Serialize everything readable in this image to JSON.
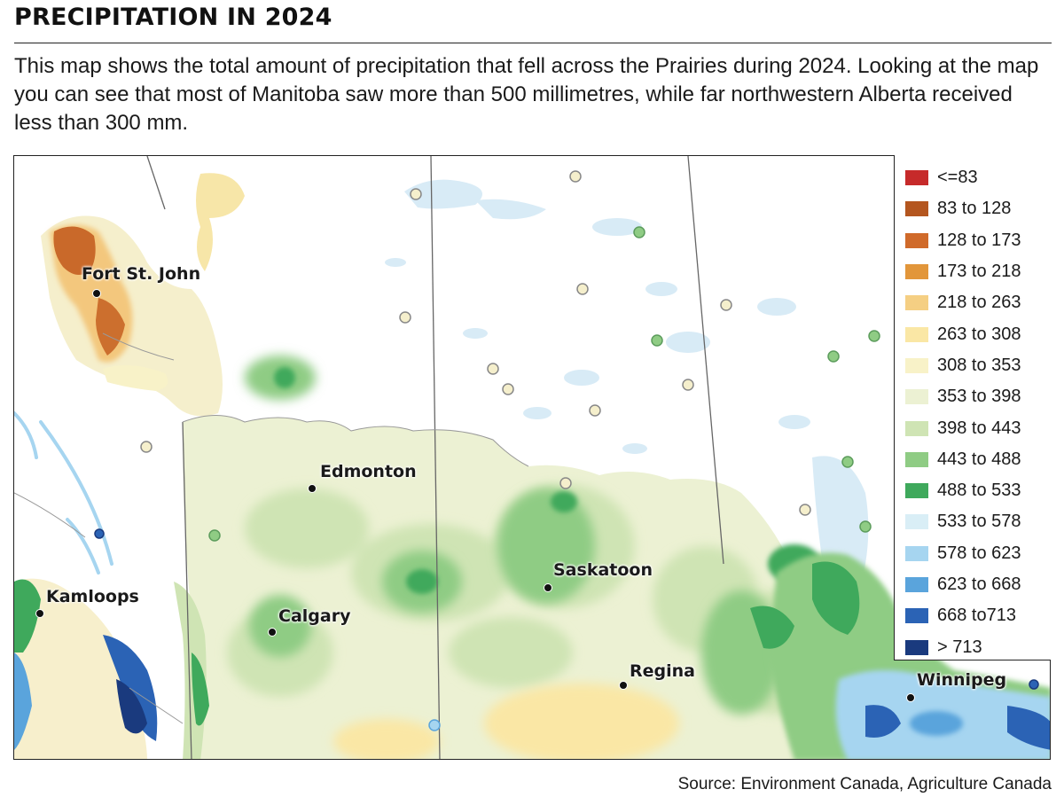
{
  "header": {
    "title": "PRECIPITATION IN 2024",
    "description": "This map shows the total amount of precipitation that fell across the Prairies during 2024. Looking at the map you can see that most of Manitoba saw more than 500 millimetres, while far northwestern Alberta received less than 300 mm."
  },
  "legend": {
    "items": [
      {
        "label": "<=83",
        "color": "#c62a2a"
      },
      {
        "label": "83 to 128",
        "color": "#b4561f"
      },
      {
        "label": "128 to 173",
        "color": "#d06a2a"
      },
      {
        "label": "173 to 218",
        "color": "#e2963a"
      },
      {
        "label": "218 to 263",
        "color": "#f5cf83"
      },
      {
        "label": "263 to 308",
        "color": "#fae7a5"
      },
      {
        "label": "308 to 353",
        "color": "#f8f2c8"
      },
      {
        "label": "353 to 398",
        "color": "#ecf1d3"
      },
      {
        "label": "398 to 443",
        "color": "#cfe4b4"
      },
      {
        "label": "443 to 488",
        "color": "#8fcc84"
      },
      {
        "label": "488 to 533",
        "color": "#3fa95c"
      },
      {
        "label": "533 to 578",
        "color": "#d9eef6"
      },
      {
        "label": "578 to 623",
        "color": "#a6d5f0"
      },
      {
        "label": "623 to 668",
        "color": "#5aa4dc"
      },
      {
        "label": "668 to713",
        "color": "#2b63b5"
      },
      {
        "label": "> 713",
        "color": "#1a3a7e"
      }
    ]
  },
  "map": {
    "cities": [
      {
        "name": "Fort St. John"
      },
      {
        "name": "Edmonton"
      },
      {
        "name": "Kamloops"
      },
      {
        "name": "Calgary"
      },
      {
        "name": "Saskatoon"
      },
      {
        "name": "Regina"
      },
      {
        "name": "Winnipeg"
      }
    ]
  },
  "footer": {
    "source": "Source: Environment Canada, Agriculture Canada"
  }
}
